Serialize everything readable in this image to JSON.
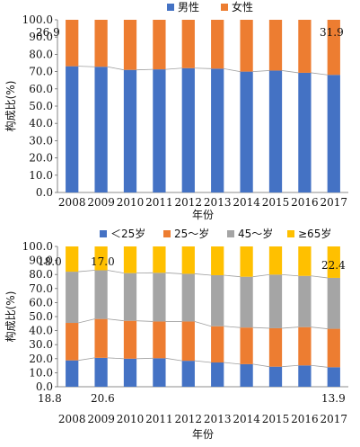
{
  "chart_data": [
    {
      "type": "bar",
      "stacked": true,
      "percent": true,
      "categories": [
        "2008",
        "2009",
        "2010",
        "2011",
        "2012",
        "2013",
        "2014",
        "2015",
        "2016",
        "2017"
      ],
      "series": [
        {
          "name": "男性",
          "color": "#4472C4",
          "values": [
            73.1,
            72.8,
            71.0,
            71.3,
            72.0,
            71.7,
            70.0,
            70.6,
            69.3,
            68.1
          ]
        },
        {
          "name": "女性",
          "color": "#ED7D31",
          "values": [
            26.9,
            27.2,
            29.0,
            28.7,
            28.0,
            28.3,
            30.0,
            29.4,
            30.7,
            31.9
          ]
        }
      ],
      "ylabel": "构成比(%)",
      "xlabel": "年份",
      "ylim": [
        0,
        100
      ],
      "yticks": [
        "0.0",
        "10.0",
        "20.0",
        "30.0",
        "40.0",
        "50.0",
        "60.0",
        "70.0",
        "80.0",
        "90.0",
        "100.0"
      ],
      "legend_position": "top",
      "series_lines": true,
      "annotations": [
        "26.9",
        "31.9"
      ]
    },
    {
      "type": "bar",
      "stacked": true,
      "percent": true,
      "categories": [
        "2008",
        "2009",
        "2010",
        "2011",
        "2012",
        "2013",
        "2014",
        "2015",
        "2016",
        "2017"
      ],
      "series": [
        {
          "name": "＜25岁",
          "color": "#4472C4",
          "values": [
            18.8,
            20.6,
            20.0,
            20.3,
            18.5,
            17.3,
            16.1,
            14.3,
            15.2,
            13.9
          ]
        },
        {
          "name": "25～岁",
          "color": "#ED7D31",
          "values": [
            26.7,
            27.7,
            27.0,
            26.2,
            28.0,
            25.8,
            26.1,
            27.4,
            27.3,
            27.4
          ]
        },
        {
          "name": "45～岁",
          "color": "#A5A5A5",
          "values": [
            36.5,
            34.7,
            34.0,
            34.7,
            34.0,
            36.4,
            36.2,
            38.2,
            36.5,
            36.3
          ]
        },
        {
          "name": "≥65岁",
          "color": "#FFC000",
          "values": [
            18.0,
            17.0,
            19.0,
            18.8,
            19.5,
            20.5,
            21.6,
            20.1,
            21.0,
            22.4
          ]
        }
      ],
      "ylabel": "构成比(%)",
      "xlabel": "年份",
      "ylim": [
        0,
        100
      ],
      "yticks": [
        "0.0",
        "10.0",
        "20.0",
        "30.0",
        "40.0",
        "50.0",
        "60.0",
        "70.0",
        "80.0",
        "90.0",
        "100.0"
      ],
      "legend_position": "top",
      "series_lines": true,
      "annotations": [
        "18.0",
        "17.0",
        "22.4",
        "18.8",
        "20.6",
        "13.9"
      ]
    }
  ]
}
